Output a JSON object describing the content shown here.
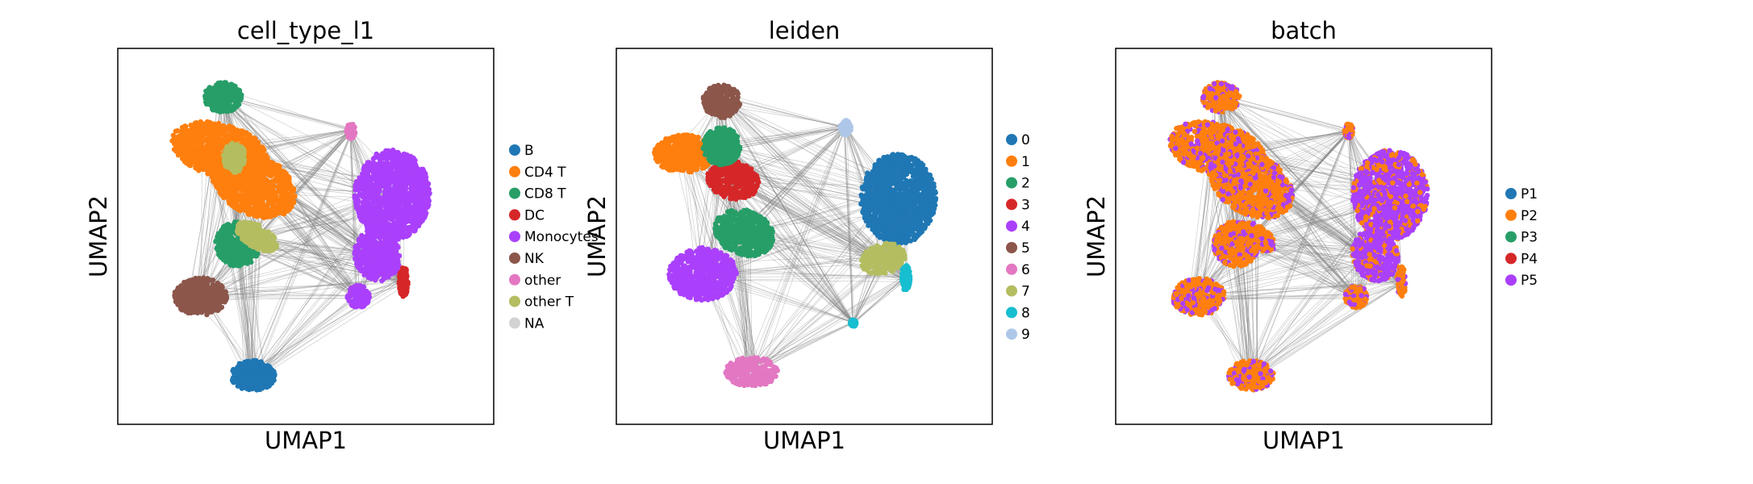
{
  "chart_data": [
    {
      "type": "scatter",
      "title": "cell_type_l1",
      "xlabel": "UMAP1",
      "ylabel": "UMAP2",
      "grid": false,
      "legend_position": "right",
      "legend": [
        {
          "label": "B",
          "color": "#1f77b4"
        },
        {
          "label": "CD4 T",
          "color": "#ff7f0e"
        },
        {
          "label": "CD8 T",
          "color": "#279e68"
        },
        {
          "label": "DC",
          "color": "#d62728"
        },
        {
          "label": "Monocytes",
          "color": "#aa40fc"
        },
        {
          "label": "NK",
          "color": "#8c564b"
        },
        {
          "label": "other",
          "color": "#e377c2"
        },
        {
          "label": "other T",
          "color": "#b5bd61"
        },
        {
          "label": "NA",
          "color": "#d3d3d3"
        }
      ]
    },
    {
      "type": "scatter",
      "title": "leiden",
      "xlabel": "UMAP1",
      "ylabel": "UMAP2",
      "grid": false,
      "legend_position": "right",
      "legend": [
        {
          "label": "0",
          "color": "#1f77b4"
        },
        {
          "label": "1",
          "color": "#ff7f0e"
        },
        {
          "label": "2",
          "color": "#279e68"
        },
        {
          "label": "3",
          "color": "#d62728"
        },
        {
          "label": "4",
          "color": "#aa40fc"
        },
        {
          "label": "5",
          "color": "#8c564b"
        },
        {
          "label": "6",
          "color": "#e377c2"
        },
        {
          "label": "7",
          "color": "#b5bd61"
        },
        {
          "label": "8",
          "color": "#17becf"
        },
        {
          "label": "9",
          "color": "#aec7e8"
        }
      ]
    },
    {
      "type": "scatter",
      "title": "batch",
      "xlabel": "UMAP1",
      "ylabel": "UMAP2",
      "grid": false,
      "legend_position": "right",
      "legend": [
        {
          "label": "P1",
          "color": "#1f77b4"
        },
        {
          "label": "P2",
          "color": "#ff7f0e"
        },
        {
          "label": "P3",
          "color": "#279e68"
        },
        {
          "label": "P4",
          "color": "#d62728"
        },
        {
          "label": "P5",
          "color": "#aa40fc"
        }
      ]
    }
  ]
}
